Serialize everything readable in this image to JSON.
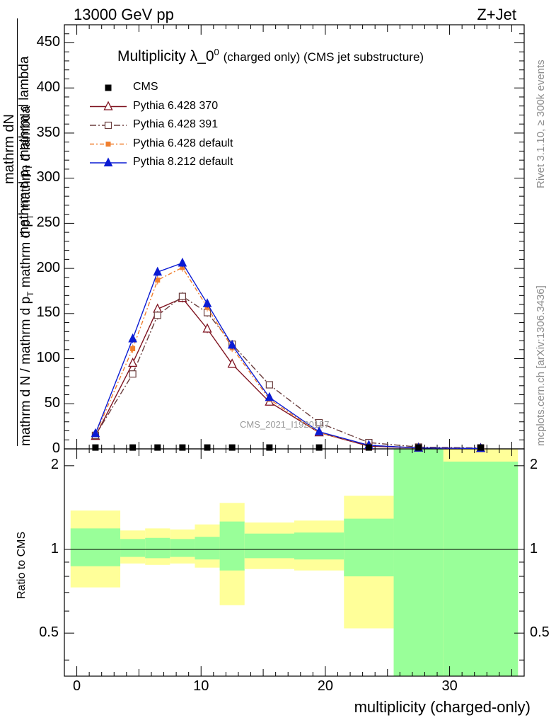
{
  "header": {
    "energy": "13000 GeV pp",
    "process": "Z+Jet"
  },
  "side": {
    "rivet": "Rivet 3.1.10, ≥ 300k events",
    "mcplots": "mcplots.cern.ch [arXiv:1306.3436]"
  },
  "chart_data": {
    "type": "line",
    "title": "Multiplicity λ_0",
    "title_sup": "0",
    "title_suffix": "(charged only) (CMS jet substructure)",
    "watermark": "CMS_2021_I1920187",
    "xlabel": "multiplicity (charged-only)",
    "ylabel": {
      "line1": "mathrm dN",
      "line2": "mathrm d p",
      "line2_sub": "T",
      "line2_rest": "mathrm d lambda",
      "line3": "1",
      "line4": "mathrm d N / mathrm d p",
      "line4_sub": "T",
      "line4_rest": "mathrm d p",
      "line4_sub2": "T",
      "line4_rest2": "mathrm d lambda"
    },
    "ratio_ylabel": "Ratio to CMS",
    "xlim": [
      -1,
      36
    ],
    "ylim": [
      0,
      470
    ],
    "ratio_ylim": [
      0.35,
      2.3
    ],
    "x_ticks": [
      0,
      10,
      20,
      30
    ],
    "y_ticks": [
      0,
      50,
      100,
      150,
      200,
      250,
      300,
      350,
      400,
      450
    ],
    "ratio_ticks": [
      0.5,
      1,
      2
    ],
    "bins": [
      {
        "lo": -0.5,
        "hi": 3.5
      },
      {
        "lo": 3.5,
        "hi": 5.5
      },
      {
        "lo": 5.5,
        "hi": 7.5
      },
      {
        "lo": 7.5,
        "hi": 9.5
      },
      {
        "lo": 9.5,
        "hi": 11.5
      },
      {
        "lo": 11.5,
        "hi": 13.5
      },
      {
        "lo": 13.5,
        "hi": 17.5
      },
      {
        "lo": 17.5,
        "hi": 21.5
      },
      {
        "lo": 21.5,
        "hi": 25.5
      },
      {
        "lo": 25.5,
        "hi": 29.5
      },
      {
        "lo": 29.5,
        "hi": 35.5
      }
    ],
    "data_x": [
      1.5,
      4.5,
      6.5,
      8.5,
      10.5,
      12.5,
      15.5,
      19.5,
      23.5,
      27.5,
      32.5
    ],
    "cms_values": [
      1.5,
      1.5,
      1.5,
      1.5,
      1.5,
      1.5,
      1.5,
      1.5,
      1.5,
      1.5,
      1.5
    ],
    "band_inner": [
      [
        0.87,
        1.19
      ],
      [
        0.94,
        1.09
      ],
      [
        0.93,
        1.1
      ],
      [
        0.94,
        1.09
      ],
      [
        0.92,
        1.11
      ],
      [
        0.84,
        1.26
      ],
      [
        0.93,
        1.14
      ],
      [
        0.92,
        1.15
      ],
      [
        0.8,
        1.29
      ],
      [
        0.35,
        2.3
      ],
      [
        0.35,
        2.07
      ]
    ],
    "band_outer": [
      [
        0.73,
        1.38
      ],
      [
        0.89,
        1.17
      ],
      [
        0.88,
        1.19
      ],
      [
        0.89,
        1.18
      ],
      [
        0.86,
        1.23
      ],
      [
        0.63,
        1.47
      ],
      [
        0.85,
        1.25
      ],
      [
        0.84,
        1.27
      ],
      [
        0.52,
        1.56
      ],
      [
        0.35,
        2.3
      ],
      [
        0.35,
        2.3
      ]
    ],
    "series": [
      {
        "name": "Pythia 6.428 370",
        "color": "#7f1320",
        "marker": "open-triangle",
        "dash": "",
        "values": [
          14,
          95,
          155,
          167,
          133,
          94,
          52,
          18,
          3,
          1,
          0.5
        ]
      },
      {
        "name": "Pythia 6.428 391",
        "color": "#6b3e3e",
        "marker": "open-square",
        "dash": "9,3,2,3",
        "values": [
          15,
          83,
          148,
          169,
          151,
          116,
          71,
          29,
          7,
          2,
          1
        ]
      },
      {
        "name": "Pythia 6.428 default",
        "color": "#f07f2e",
        "marker": "filled-square",
        "dash": "6,3,2,3",
        "values": [
          16,
          111,
          187,
          201,
          157,
          112,
          55,
          18,
          4,
          1,
          0.5
        ]
      },
      {
        "name": "Pythia 8.212 default",
        "color": "#0b1bd3",
        "marker": "filled-triangle",
        "dash": "",
        "values": [
          17,
          122,
          196,
          206,
          161,
          115,
          57,
          19,
          4,
          1,
          0.5
        ]
      }
    ],
    "legend": [
      "CMS",
      "Pythia 6.428 370",
      "Pythia 6.428 391",
      "Pythia 6.428 default",
      "Pythia 8.212 default"
    ],
    "legend_position": "top-left"
  }
}
